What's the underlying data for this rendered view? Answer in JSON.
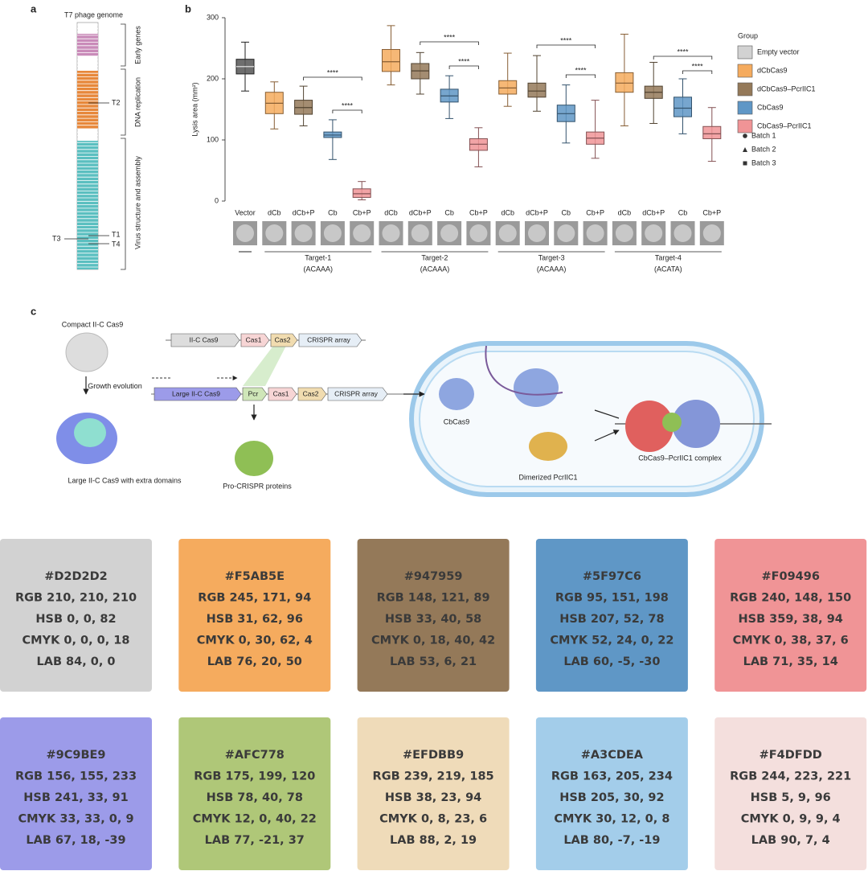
{
  "panel_a": {
    "label": "a",
    "title": "T7 phage genome",
    "sections": [
      "Early genes",
      "DNA replication",
      "Virus structure and assembly"
    ],
    "markers": [
      "T2",
      "T1",
      "T3",
      "T4"
    ]
  },
  "chart_data": {
    "type": "box",
    "panel_label": "b",
    "ylabel": "Lysis area (mm²)",
    "ylim": [
      0,
      300
    ],
    "yticks": [
      0,
      100,
      200,
      300
    ],
    "categories": [
      "Vector",
      "dCb",
      "dCb+P",
      "Cb",
      "Cb+P",
      "dCb",
      "dCb+P",
      "Cb",
      "Cb+P",
      "dCb",
      "dCb+P",
      "Cb",
      "Cb+P",
      "dCb",
      "dCb+P",
      "Cb",
      "Cb+P"
    ],
    "groups": [
      {
        "name": "Target-1",
        "subtitle": "(ACAAA)"
      },
      {
        "name": "Target-2",
        "subtitle": "(ACAAA)"
      },
      {
        "name": "Target-3",
        "subtitle": "(ACAAA)"
      },
      {
        "name": "Target-4",
        "subtitle": "(ACATA)"
      }
    ],
    "significance": [
      "****",
      "****",
      "****",
      "****",
      "****",
      "****",
      "****",
      "****"
    ],
    "legend_title": "Group",
    "batches": [
      "Batch 1",
      "Batch 2",
      "Batch 3"
    ],
    "series": [
      {
        "name": "Empty vector",
        "color": "#D2D2D2",
        "values": [
          {
            "whislo": 180,
            "q1": 208,
            "med": 220,
            "q3": 232,
            "whishi": 260
          },
          null,
          null,
          null,
          null,
          null,
          null,
          null,
          null,
          null,
          null,
          null,
          null,
          null,
          null,
          null,
          null
        ]
      },
      {
        "name": "dCbCas9",
        "color": "#F5AB5E",
        "values": [
          null,
          {
            "whislo": 118,
            "q1": 143,
            "med": 160,
            "q3": 178,
            "whishi": 195
          },
          null,
          null,
          null,
          {
            "whislo": 190,
            "q1": 212,
            "med": 228,
            "q3": 248,
            "whishi": 287
          },
          null,
          null,
          null,
          {
            "whislo": 155,
            "q1": 175,
            "med": 185,
            "q3": 197,
            "whishi": 242
          },
          null,
          null,
          null,
          {
            "whislo": 123,
            "q1": 178,
            "med": 193,
            "q3": 210,
            "whishi": 273
          },
          null,
          null,
          null
        ]
      },
      {
        "name": "dCbCas9–PcrIIC1",
        "color": "#947959",
        "values": [
          null,
          null,
          {
            "whislo": 123,
            "q1": 142,
            "med": 153,
            "q3": 165,
            "whishi": 188
          },
          null,
          null,
          null,
          {
            "whislo": 175,
            "q1": 200,
            "med": 213,
            "q3": 225,
            "whishi": 243
          },
          null,
          null,
          null,
          {
            "whislo": 147,
            "q1": 170,
            "med": 180,
            "q3": 193,
            "whishi": 238
          },
          null,
          null,
          null,
          {
            "whislo": 127,
            "q1": 168,
            "med": 178,
            "q3": 188,
            "whishi": 227
          },
          null,
          null
        ]
      },
      {
        "name": "CbCas9",
        "color": "#5F97C6",
        "values": [
          null,
          null,
          null,
          {
            "whislo": 68,
            "q1": 104,
            "med": 108,
            "q3": 113,
            "whishi": 133
          },
          null,
          null,
          null,
          {
            "whislo": 135,
            "q1": 162,
            "med": 172,
            "q3": 183,
            "whishi": 205
          },
          null,
          null,
          null,
          {
            "whislo": 95,
            "q1": 130,
            "med": 143,
            "q3": 157,
            "whishi": 190
          },
          null,
          null,
          null,
          {
            "whislo": 110,
            "q1": 138,
            "med": 152,
            "q3": 170,
            "whishi": 200
          },
          null
        ]
      },
      {
        "name": "CbCas9–PcrIIC1",
        "color": "#F09496",
        "values": [
          null,
          null,
          null,
          null,
          {
            "whislo": 2,
            "q1": 6,
            "med": 12,
            "q3": 20,
            "whishi": 32
          },
          null,
          null,
          null,
          {
            "whislo": 56,
            "q1": 83,
            "med": 93,
            "q3": 102,
            "whishi": 120
          },
          null,
          null,
          null,
          {
            "whislo": 70,
            "q1": 93,
            "med": 103,
            "q3": 113,
            "whishi": 165
          },
          null,
          null,
          null,
          {
            "whislo": 65,
            "q1": 102,
            "med": 110,
            "q3": 122,
            "whishi": 153
          }
        ]
      }
    ]
  },
  "panel_c": {
    "label": "c",
    "compact": "Compact II-C Cas9",
    "evolution": "Growth evolution",
    "large": "Large II-C Cas9 with extra domains",
    "operon_top": [
      "II-C Cas9",
      "Cas1",
      "Cas2",
      "CRISPR array"
    ],
    "operon_bottom": [
      "Large II-C Cas9",
      "Pcr",
      "Cas1",
      "Cas2",
      "CRISPR array"
    ],
    "pro": "Pro-CRISPR proteins",
    "cbcas9": "CbCas9",
    "dimer": "Dimerized PcrIIC1",
    "complex": "CbCas9–PcrIIC1 complex"
  },
  "swatches": [
    {
      "hex": "#D2D2D2",
      "rgb": "RGB 210, 210, 210",
      "hsb": "HSB 0, 0, 82",
      "cmyk": "CMYK 0, 0, 0, 18",
      "lab": "LAB 84, 0, 0"
    },
    {
      "hex": "#F5AB5E",
      "rgb": "RGB 245, 171, 94",
      "hsb": "HSB 31, 62, 96",
      "cmyk": "CMYK 0, 30, 62, 4",
      "lab": "LAB 76, 20, 50"
    },
    {
      "hex": "#947959",
      "rgb": "RGB 148, 121, 89",
      "hsb": "HSB 33, 40, 58",
      "cmyk": "CMYK 0, 18, 40, 42",
      "lab": "LAB 53, 6, 21"
    },
    {
      "hex": "#5F97C6",
      "rgb": "RGB 95, 151, 198",
      "hsb": "HSB 207, 52, 78",
      "cmyk": "CMYK 52, 24, 0, 22",
      "lab": "LAB 60, -5, -30"
    },
    {
      "hex": "#F09496",
      "rgb": "RGB 240, 148, 150",
      "hsb": "HSB 359, 38, 94",
      "cmyk": "CMYK 0, 38, 37, 6",
      "lab": "LAB 71, 35, 14"
    },
    {
      "hex": "#9C9BE9",
      "rgb": "RGB 156, 155, 233",
      "hsb": "HSB 241, 33, 91",
      "cmyk": "CMYK 33, 33, 0, 9",
      "lab": "LAB 67, 18, -39"
    },
    {
      "hex": "#AFC778",
      "rgb": "RGB 175, 199, 120",
      "hsb": "HSB 78, 40, 78",
      "cmyk": "CMYK 12, 0, 40, 22",
      "lab": "LAB 77, -21, 37"
    },
    {
      "hex": "#EFDBB9",
      "rgb": "RGB 239, 219, 185",
      "hsb": "HSB 38, 23, 94",
      "cmyk": "CMYK 0, 8, 23, 6",
      "lab": "LAB 88, 2, 19"
    },
    {
      "hex": "#A3CDEA",
      "rgb": "RGB 163, 205, 234",
      "hsb": "HSB 205, 30, 92",
      "cmyk": "CMYK 30, 12, 0, 8",
      "lab": "LAB 80, -7, -19"
    },
    {
      "hex": "#F4DFDD",
      "rgb": "RGB 244, 223, 221",
      "hsb": "HSB 5, 9, 96",
      "cmyk": "CMYK 0, 9, 9, 4",
      "lab": "LAB 90, 7, 4"
    }
  ]
}
